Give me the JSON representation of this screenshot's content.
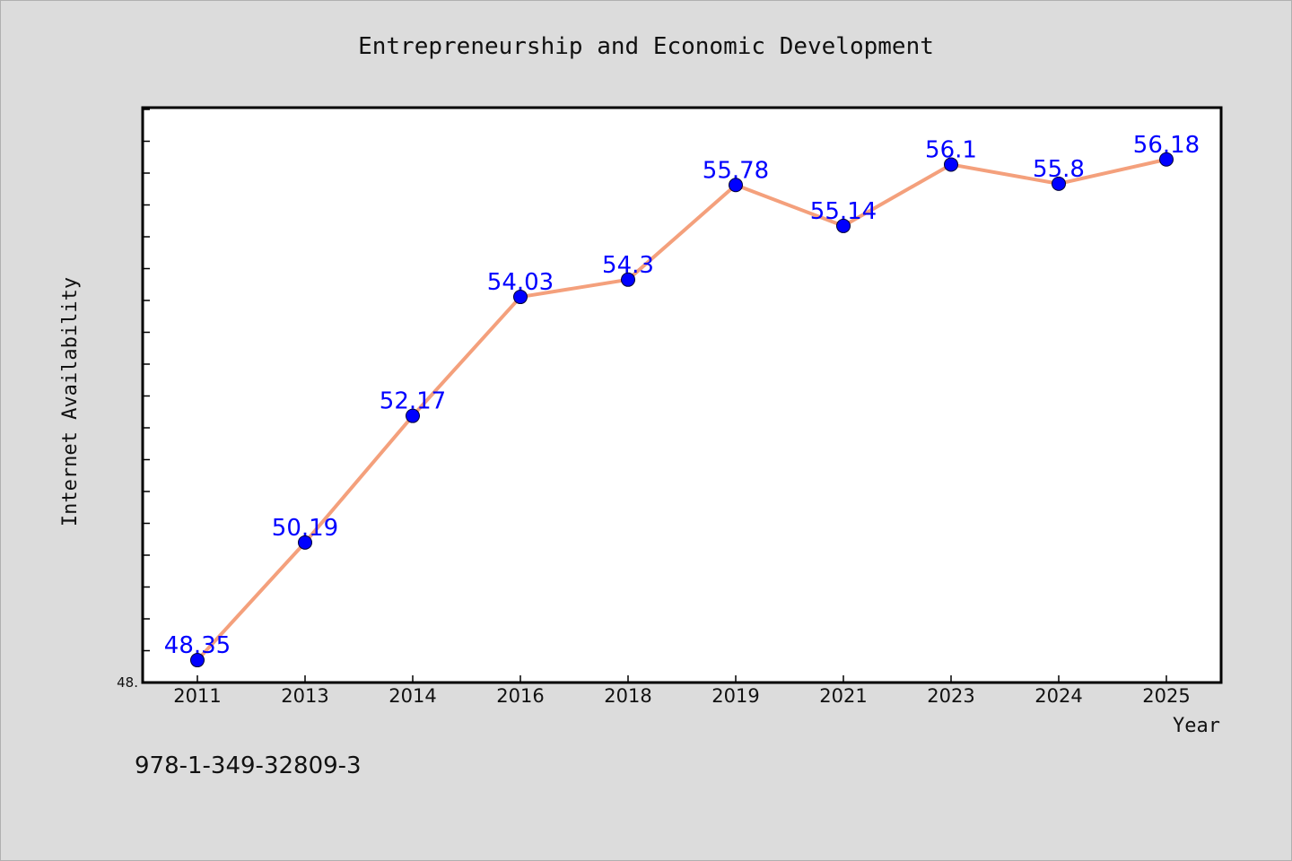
{
  "chart_data": {
    "type": "line",
    "title": "Entrepreneurship and Economic Development",
    "xlabel": "Year",
    "ylabel": "Internet Availability",
    "categories": [
      "2011",
      "2013",
      "2014",
      "2016",
      "2018",
      "2019",
      "2021",
      "2023",
      "2024",
      "2025"
    ],
    "series": [
      {
        "values": [
          48.35,
          50.19,
          52.17,
          54.03,
          54.3,
          55.78,
          55.14,
          56.1,
          55.8,
          56.18
        ],
        "labels": [
          "48.35",
          "50.19",
          "52.17",
          "54.03",
          "54.3",
          "55.78",
          "55.14",
          "56.1",
          "55.8",
          "56.18"
        ],
        "line_color": "#f4a07c",
        "marker_color": "#0000ff"
      }
    ],
    "ylim": [
      48.0,
      56.99
    ],
    "ytick_label": "48.",
    "grid": false,
    "legend": "none"
  },
  "caption": "978-1-349-32809-3"
}
